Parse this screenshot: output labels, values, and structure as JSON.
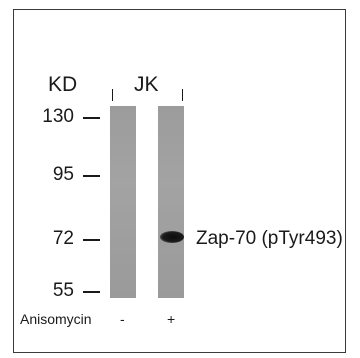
{
  "header": {
    "kd": "KD",
    "cell_line": "JK"
  },
  "markers": [
    "130",
    "95",
    "72",
    "55"
  ],
  "band_label": "Zap-70 (pTyr493)",
  "treatment": {
    "label": "Anisomycin",
    "lanes": [
      "-",
      "+"
    ]
  }
}
